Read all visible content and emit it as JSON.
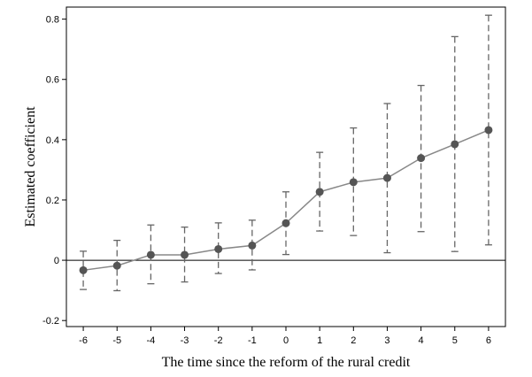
{
  "chart_data": {
    "type": "line",
    "title": "",
    "xlabel": "The time since the reform of the rural credit",
    "ylabel": "Estimated coefficient",
    "categories": [
      "-6",
      "-5",
      "-4",
      "-3",
      "-2",
      "-1",
      "0",
      "1",
      "2",
      "3",
      "4",
      "5",
      "6"
    ],
    "x": [
      -6,
      -5,
      -4,
      -3,
      -2,
      -1,
      0,
      1,
      2,
      3,
      4,
      5,
      6
    ],
    "series": [
      {
        "values": [
          -0.033,
          -0.018,
          0.018,
          0.018,
          0.037,
          0.049,
          0.123,
          0.227,
          0.259,
          0.273,
          0.339,
          0.385,
          0.432
        ],
        "ci_lower": [
          -0.097,
          -0.101,
          -0.078,
          -0.072,
          -0.044,
          -0.032,
          0.019,
          0.097,
          0.082,
          0.025,
          0.095,
          0.029,
          0.051
        ],
        "ci_upper": [
          0.03,
          0.066,
          0.117,
          0.11,
          0.124,
          0.133,
          0.227,
          0.358,
          0.439,
          0.52,
          0.58,
          0.742,
          0.813
        ]
      }
    ],
    "yticks": [
      -0.2,
      0,
      0.2,
      0.4,
      0.6,
      0.8
    ],
    "ytick_labels": [
      "-0.2",
      "0",
      "0.2",
      "0.4",
      "0.6",
      "0.8"
    ],
    "xlim": [
      -6.5,
      6.5
    ],
    "ylim": [
      -0.22,
      0.84
    ],
    "reference_line_y": 0,
    "grid": false,
    "legend": "none",
    "colors": {
      "line": "#888888",
      "marker": "#555555",
      "error_bar": "#666666",
      "reference": "#000000",
      "frame": "#000000"
    }
  }
}
